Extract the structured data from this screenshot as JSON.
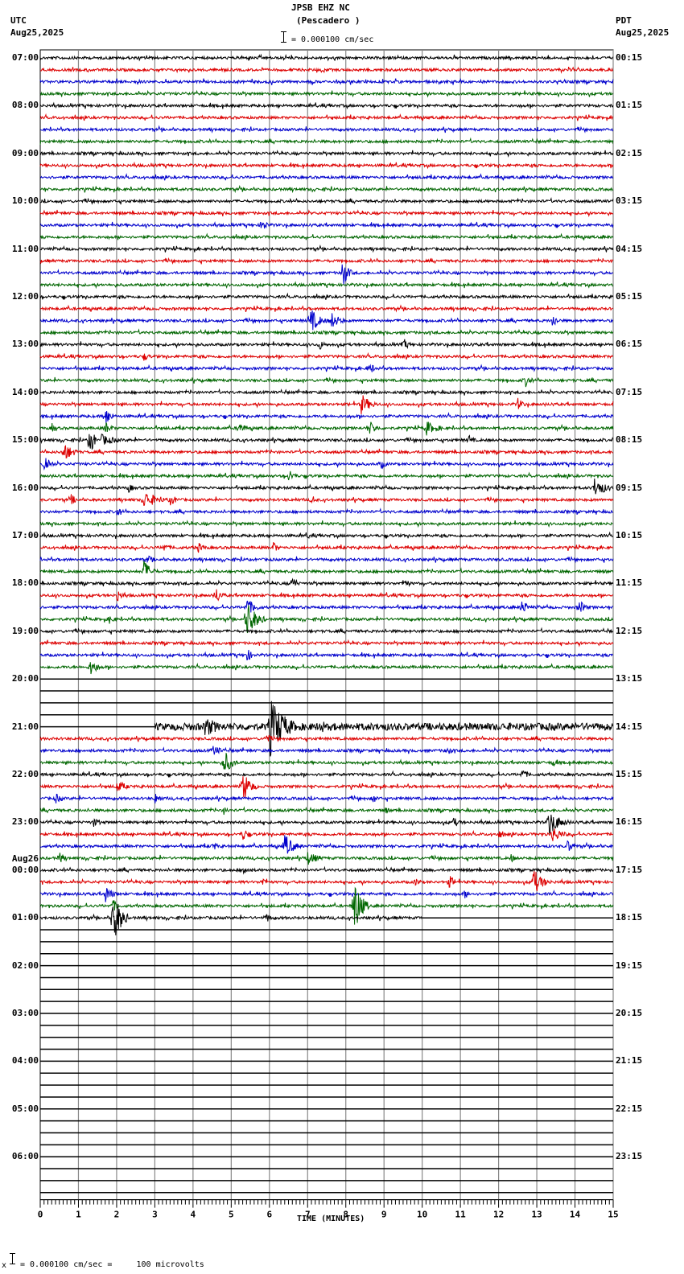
{
  "header": {
    "station": "JPSB EHZ NC",
    "location": "(Pescadero )",
    "scale_label": "= 0.000100 cm/sec",
    "left_tz": "UTC",
    "left_date": "Aug25,2025",
    "right_tz": "PDT",
    "right_date": "Aug25,2025"
  },
  "footer": {
    "prefix": "x",
    "scale_text": "= 0.000100 cm/sec =     100 microvolts"
  },
  "chart_data": {
    "type": "line",
    "title": "JPSB EHZ NC (Pescadero ) helicorder",
    "xlabel": "TIME (MINUTES)",
    "ylabel": "",
    "xlim": [
      0,
      15
    ],
    "x_ticks": [
      "0",
      "1",
      "2",
      "3",
      "4",
      "5",
      "6",
      "7",
      "8",
      "9",
      "10",
      "11",
      "12",
      "13",
      "14",
      "15"
    ],
    "traces_per_hour": 4,
    "trace_colors": [
      "#000000",
      "#dd0000",
      "#0000cc",
      "#006600"
    ],
    "left_hour_labels": [
      "07:00",
      "08:00",
      "09:00",
      "10:00",
      "11:00",
      "12:00",
      "13:00",
      "14:00",
      "15:00",
      "16:00",
      "17:00",
      "18:00",
      "19:00",
      "20:00",
      "21:00",
      "22:00",
      "23:00",
      "00:00",
      "01:00",
      "02:00",
      "03:00",
      "04:00",
      "05:00",
      "06:00"
    ],
    "left_date_change": {
      "hour_index": 17,
      "label": "Aug26"
    },
    "right_hour_labels": [
      "00:15",
      "01:15",
      "02:15",
      "03:15",
      "04:15",
      "05:15",
      "06:15",
      "07:15",
      "08:15",
      "09:15",
      "10:15",
      "11:15",
      "12:15",
      "13:15",
      "14:15",
      "15:15",
      "16:15",
      "17:15",
      "18:15",
      "19:15",
      "20:15",
      "21:15",
      "22:15",
      "23:15"
    ],
    "data_rows_end": {
      "row": 72,
      "minute": 10.0
    },
    "gap_rows": [
      52,
      53,
      54,
      55
    ],
    "row_56_start_minute": 3.0,
    "events": [
      {
        "row": 14,
        "minute": 5.8,
        "amp": 14,
        "dur": 0.2
      },
      {
        "row": 18,
        "minute": 7.9,
        "amp": 22,
        "dur": 0.3
      },
      {
        "row": 22,
        "minute": 7.05,
        "amp": 18,
        "dur": 0.5
      },
      {
        "row": 22,
        "minute": 7.6,
        "amp": 12,
        "dur": 0.5
      },
      {
        "row": 22,
        "minute": 13.4,
        "amp": 10,
        "dur": 0.3
      },
      {
        "row": 24,
        "minute": 7.3,
        "amp": 8,
        "dur": 0.3
      },
      {
        "row": 24,
        "minute": 9.5,
        "amp": 9,
        "dur": 0.3
      },
      {
        "row": 25,
        "minute": 2.7,
        "amp": 7,
        "dur": 0.3
      },
      {
        "row": 26,
        "minute": 8.6,
        "amp": 10,
        "dur": 0.3
      },
      {
        "row": 27,
        "minute": 12.7,
        "amp": 9,
        "dur": 0.3
      },
      {
        "row": 29,
        "minute": 8.4,
        "amp": 14,
        "dur": 0.5
      },
      {
        "row": 29,
        "minute": 12.5,
        "amp": 9,
        "dur": 0.3
      },
      {
        "row": 30,
        "minute": 1.7,
        "amp": 14,
        "dur": 0.3
      },
      {
        "row": 31,
        "minute": 0.3,
        "amp": 7,
        "dur": 0.3
      },
      {
        "row": 31,
        "minute": 1.7,
        "amp": 10,
        "dur": 0.3
      },
      {
        "row": 31,
        "minute": 5.2,
        "amp": 10,
        "dur": 0.3
      },
      {
        "row": 31,
        "minute": 8.6,
        "amp": 11,
        "dur": 0.4
      },
      {
        "row": 31,
        "minute": 10.1,
        "amp": 10,
        "dur": 0.6
      },
      {
        "row": 32,
        "minute": 1.3,
        "amp": 26,
        "dur": 0.2
      },
      {
        "row": 32,
        "minute": 1.6,
        "amp": 8,
        "dur": 0.8
      },
      {
        "row": 32,
        "minute": 11.2,
        "amp": 8,
        "dur": 0.3
      },
      {
        "row": 33,
        "minute": 0.6,
        "amp": 14,
        "dur": 0.5
      },
      {
        "row": 34,
        "minute": 0.1,
        "amp": 16,
        "dur": 0.3
      },
      {
        "row": 34,
        "minute": 8.9,
        "amp": 8,
        "dur": 0.3
      },
      {
        "row": 35,
        "minute": 6.5,
        "amp": 10,
        "dur": 0.3
      },
      {
        "row": 36,
        "minute": 2.3,
        "amp": 7,
        "dur": 0.3
      },
      {
        "row": 36,
        "minute": 14.5,
        "amp": 14,
        "dur": 0.6
      },
      {
        "row": 37,
        "minute": 0.8,
        "amp": 8,
        "dur": 0.3
      },
      {
        "row": 37,
        "minute": 2.7,
        "amp": 12,
        "dur": 0.8
      },
      {
        "row": 37,
        "minute": 3.4,
        "amp": 8,
        "dur": 0.4
      },
      {
        "row": 37,
        "minute": 7.1,
        "amp": 7,
        "dur": 0.3
      },
      {
        "row": 38,
        "minute": 2.0,
        "amp": 8,
        "dur": 0.3
      },
      {
        "row": 40,
        "minute": 7.0,
        "amp": 6,
        "dur": 0.2
      },
      {
        "row": 41,
        "minute": 3.2,
        "amp": 7,
        "dur": 0.4
      },
      {
        "row": 41,
        "minute": 4.1,
        "amp": 8,
        "dur": 0.4
      },
      {
        "row": 41,
        "minute": 6.1,
        "amp": 8,
        "dur": 0.3
      },
      {
        "row": 42,
        "minute": 2.8,
        "amp": 6,
        "dur": 0.4
      },
      {
        "row": 43,
        "minute": 2.7,
        "amp": 16,
        "dur": 0.4
      },
      {
        "row": 44,
        "minute": 6.6,
        "amp": 14,
        "dur": 0.2
      },
      {
        "row": 44,
        "minute": 9.5,
        "amp": 9,
        "dur": 0.3
      },
      {
        "row": 45,
        "minute": 2.0,
        "amp": 9,
        "dur": 0.3
      },
      {
        "row": 45,
        "minute": 4.6,
        "amp": 12,
        "dur": 0.3
      },
      {
        "row": 46,
        "minute": 5.4,
        "amp": 12,
        "dur": 0.5
      },
      {
        "row": 46,
        "minute": 12.6,
        "amp": 12,
        "dur": 0.3
      },
      {
        "row": 46,
        "minute": 14.1,
        "amp": 12,
        "dur": 0.3
      },
      {
        "row": 47,
        "minute": 5.4,
        "amp": 26,
        "dur": 0.5
      },
      {
        "row": 47,
        "minute": 1.8,
        "amp": 6,
        "dur": 0.4
      },
      {
        "row": 50,
        "minute": 5.4,
        "amp": 10,
        "dur": 0.3
      },
      {
        "row": 51,
        "minute": 1.3,
        "amp": 12,
        "dur": 0.4
      },
      {
        "row": 56,
        "minute": 4.3,
        "amp": 14,
        "dur": 0.8
      },
      {
        "row": 56,
        "minute": 6.0,
        "amp": 40,
        "dur": 0.8
      },
      {
        "row": 56,
        "minute": 7.3,
        "amp": 10,
        "dur": 0.6
      },
      {
        "row": 56,
        "minute": 12.1,
        "amp": 7,
        "dur": 0.3
      },
      {
        "row": 57,
        "minute": 5.9,
        "amp": 8,
        "dur": 0.3
      },
      {
        "row": 58,
        "minute": 4.5,
        "amp": 8,
        "dur": 0.5
      },
      {
        "row": 58,
        "minute": 10.6,
        "amp": 7,
        "dur": 0.4
      },
      {
        "row": 59,
        "minute": 4.8,
        "amp": 18,
        "dur": 0.4
      },
      {
        "row": 59,
        "minute": 13.4,
        "amp": 7,
        "dur": 0.3
      },
      {
        "row": 60,
        "minute": 12.6,
        "amp": 9,
        "dur": 0.3
      },
      {
        "row": 60,
        "minute": 15.0,
        "amp": 8,
        "dur": 0.2
      },
      {
        "row": 61,
        "minute": 2.0,
        "amp": 9,
        "dur": 0.5
      },
      {
        "row": 61,
        "minute": 5.3,
        "amp": 22,
        "dur": 0.4
      },
      {
        "row": 62,
        "minute": 0.4,
        "amp": 7,
        "dur": 0.4
      },
      {
        "row": 62,
        "minute": 3.0,
        "amp": 9,
        "dur": 0.3
      },
      {
        "row": 62,
        "minute": 8.7,
        "amp": 7,
        "dur": 0.3
      },
      {
        "row": 63,
        "minute": 4.8,
        "amp": 6,
        "dur": 0.3
      },
      {
        "row": 63,
        "minute": 9.0,
        "amp": 6,
        "dur": 0.3
      },
      {
        "row": 64,
        "minute": 1.4,
        "amp": 7,
        "dur": 0.3
      },
      {
        "row": 64,
        "minute": 10.8,
        "amp": 7,
        "dur": 0.4
      },
      {
        "row": 64,
        "minute": 13.3,
        "amp": 18,
        "dur": 0.6
      },
      {
        "row": 65,
        "minute": 5.3,
        "amp": 10,
        "dur": 0.3
      },
      {
        "row": 65,
        "minute": 12.0,
        "amp": 7,
        "dur": 0.3
      },
      {
        "row": 65,
        "minute": 13.4,
        "amp": 12,
        "dur": 0.5
      },
      {
        "row": 66,
        "minute": 4.5,
        "amp": 7,
        "dur": 0.3
      },
      {
        "row": 66,
        "minute": 6.4,
        "amp": 16,
        "dur": 0.5
      },
      {
        "row": 66,
        "minute": 13.8,
        "amp": 9,
        "dur": 0.4
      },
      {
        "row": 67,
        "minute": 0.5,
        "amp": 9,
        "dur": 0.3
      },
      {
        "row": 67,
        "minute": 7.0,
        "amp": 9,
        "dur": 0.6
      },
      {
        "row": 67,
        "minute": 12.3,
        "amp": 7,
        "dur": 0.3
      },
      {
        "row": 68,
        "minute": 5.3,
        "amp": 9,
        "dur": 0.3
      },
      {
        "row": 69,
        "minute": 5.8,
        "amp": 7,
        "dur": 0.3
      },
      {
        "row": 69,
        "minute": 9.8,
        "amp": 7,
        "dur": 0.3
      },
      {
        "row": 69,
        "minute": 10.7,
        "amp": 9,
        "dur": 0.4
      },
      {
        "row": 69,
        "minute": 12.9,
        "amp": 18,
        "dur": 0.5
      },
      {
        "row": 70,
        "minute": 1.7,
        "amp": 12,
        "dur": 0.4
      },
      {
        "row": 70,
        "minute": 11.1,
        "amp": 7,
        "dur": 0.3
      },
      {
        "row": 71,
        "minute": 1.9,
        "amp": 9,
        "dur": 0.3
      },
      {
        "row": 71,
        "minute": 8.2,
        "amp": 40,
        "dur": 0.4
      },
      {
        "row": 72,
        "minute": 1.9,
        "amp": 40,
        "dur": 0.4
      },
      {
        "row": 72,
        "minute": 5.9,
        "amp": 8,
        "dur": 0.3
      }
    ]
  }
}
